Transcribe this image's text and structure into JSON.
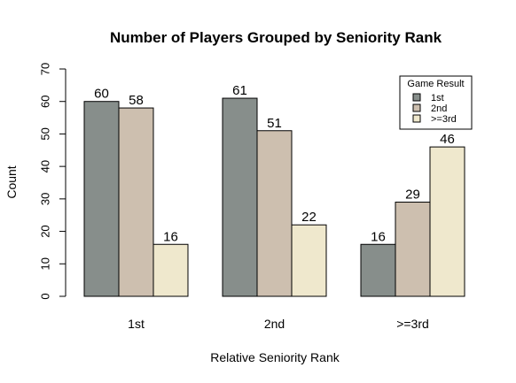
{
  "chart_data": {
    "type": "bar",
    "title": "Number of Players Grouped by Seniority Rank",
    "xlabel": "Relative Seniority Rank",
    "ylabel": "Count",
    "categories": [
      "1st",
      "2nd",
      ">=3rd"
    ],
    "ylim": [
      0,
      70
    ],
    "yticks": [
      0,
      10,
      20,
      30,
      40,
      50,
      60,
      70
    ],
    "series": [
      {
        "name": "1st",
        "values": [
          60,
          61,
          16
        ],
        "color": "#878e8b"
      },
      {
        "name": "2nd",
        "values": [
          58,
          51,
          29
        ],
        "color": "#cdbfaf"
      },
      {
        "name": ">=3rd",
        "values": [
          16,
          22,
          46
        ],
        "color": "#efe8cd"
      }
    ],
    "legend": {
      "title": "Game Result",
      "position": "top-right"
    },
    "grid": false
  }
}
